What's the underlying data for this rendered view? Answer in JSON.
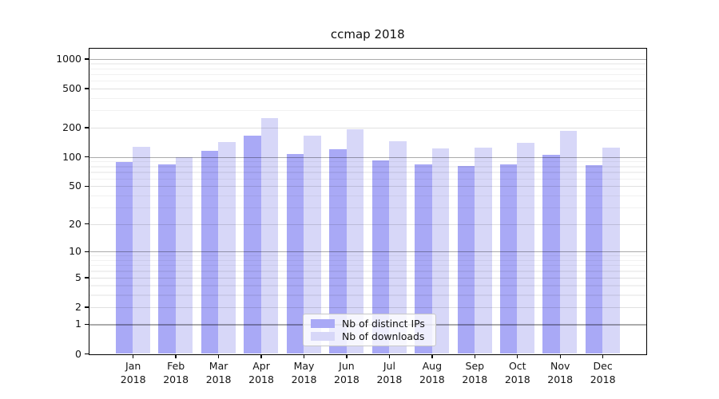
{
  "chart_data": {
    "type": "bar",
    "title": "ccmap 2018",
    "categories": [
      "Jan",
      "Feb",
      "Mar",
      "Apr",
      "May",
      "Jun",
      "Jul",
      "Aug",
      "Sep",
      "Oct",
      "Nov",
      "Dec"
    ],
    "x_tick_second_line": "2018",
    "series": [
      {
        "name": "Nb of distinct IPs",
        "color": "#a9a9f6",
        "values": [
          88,
          83,
          116,
          165,
          106,
          119,
          92,
          84,
          80,
          84,
          104,
          82
        ]
      },
      {
        "name": "Nb of downloads",
        "color": "#d7d7f8",
        "values": [
          126,
          100,
          142,
          250,
          166,
          191,
          145,
          123,
          125,
          139,
          184,
          125
        ]
      }
    ],
    "y_scale": "log1p",
    "ylim": [
      0,
      1270
    ],
    "y_ticks": [
      0,
      1,
      2,
      5,
      10,
      20,
      50,
      100,
      200,
      500,
      1000
    ],
    "grid": true,
    "legend_position": "lower center",
    "xlabel": "",
    "ylabel": ""
  }
}
